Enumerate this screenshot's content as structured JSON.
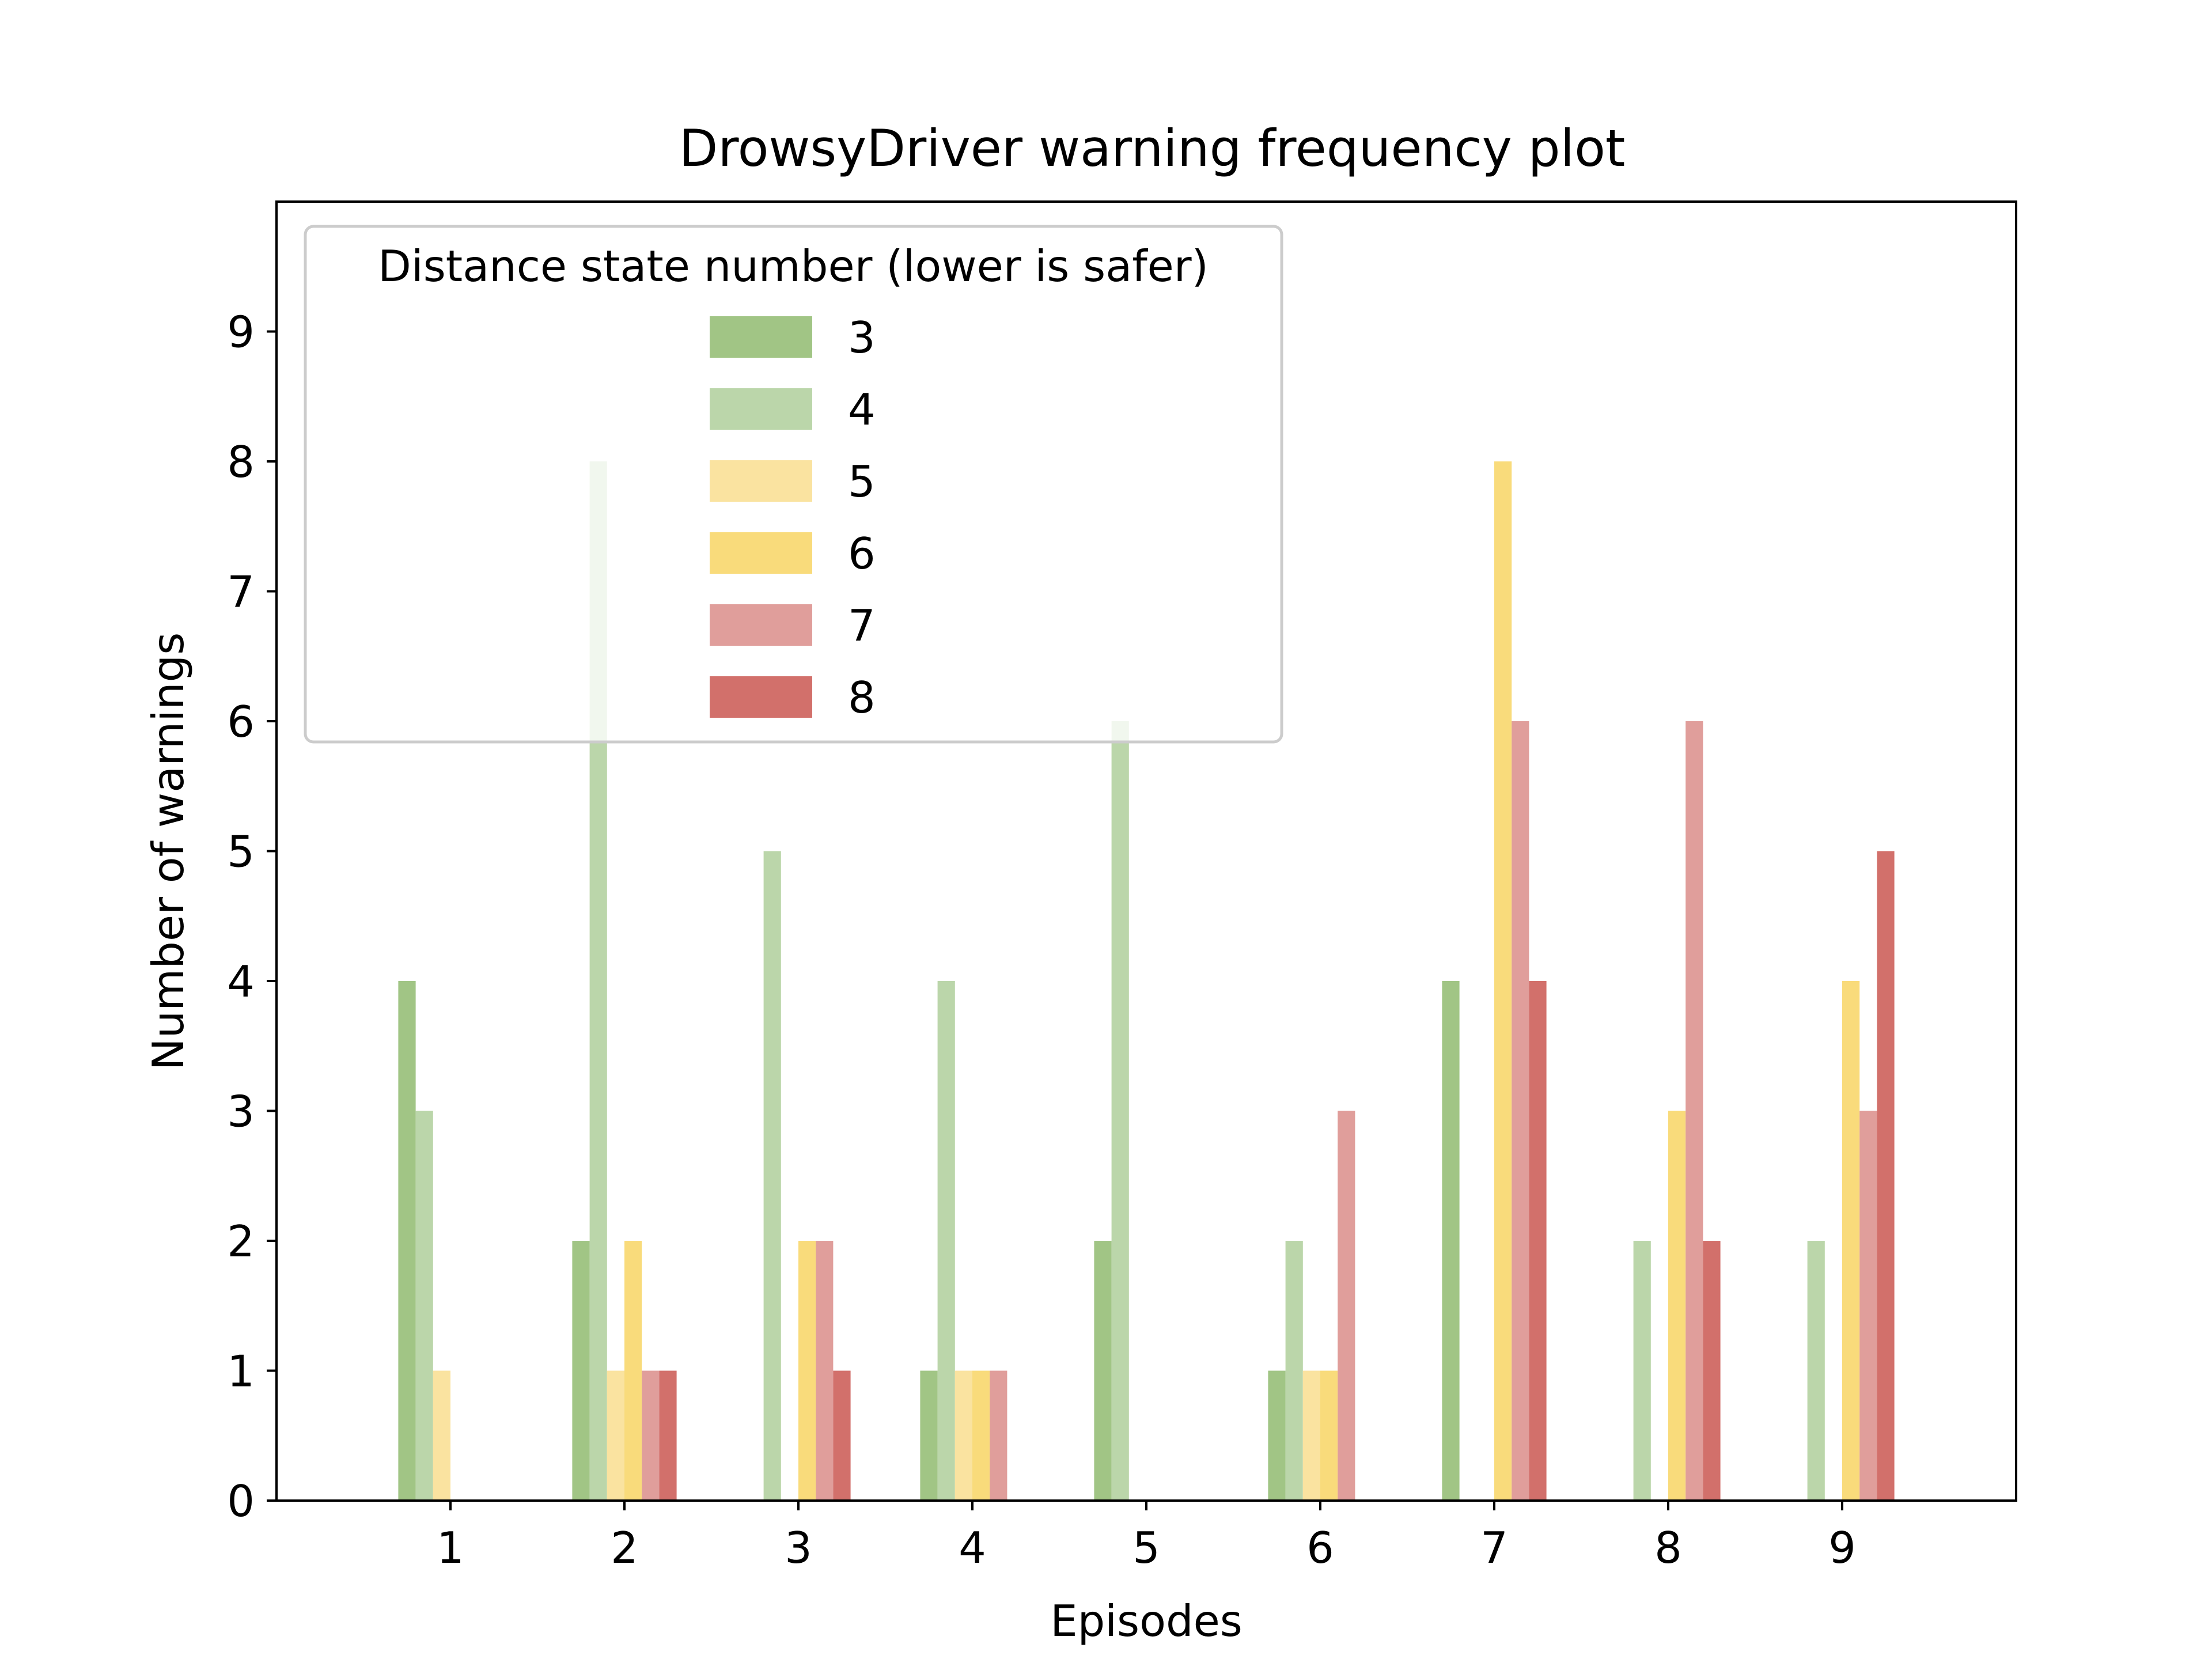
{
  "chart_data": {
    "type": "bar",
    "title": "DrowsyDriver warning frequency plot",
    "xlabel": "Episodes",
    "ylabel": "Number of warnings",
    "categories": [
      "1",
      "2",
      "3",
      "4",
      "5",
      "6",
      "7",
      "8",
      "9"
    ],
    "xlim": [
      0,
      10
    ],
    "ylim": [
      0,
      10
    ],
    "yticks": [
      0,
      1,
      2,
      3,
      4,
      5,
      6,
      7,
      8,
      9
    ],
    "grid": false,
    "legend": {
      "title": "Distance state number (lower is safer)",
      "placement": "upper-left"
    },
    "series": [
      {
        "name": "3",
        "color": "#a1c585",
        "values": [
          4,
          2,
          0,
          1,
          2,
          1,
          4,
          0,
          0
        ]
      },
      {
        "name": "4",
        "color": "#bbd6aa",
        "values": [
          3,
          8,
          5,
          4,
          6,
          2,
          0,
          2,
          2
        ]
      },
      {
        "name": "5",
        "color": "#fae3a0",
        "values": [
          1,
          1,
          0,
          1,
          0,
          1,
          0,
          0,
          0
        ]
      },
      {
        "name": "6",
        "color": "#f9db7b",
        "values": [
          0,
          2,
          2,
          1,
          0,
          1,
          8,
          3,
          4
        ]
      },
      {
        "name": "7",
        "color": "#e09e9b",
        "values": [
          0,
          1,
          2,
          1,
          0,
          3,
          6,
          6,
          3
        ]
      },
      {
        "name": "8",
        "color": "#d2706b",
        "values": [
          0,
          1,
          1,
          0,
          0,
          0,
          4,
          2,
          5
        ]
      }
    ]
  }
}
